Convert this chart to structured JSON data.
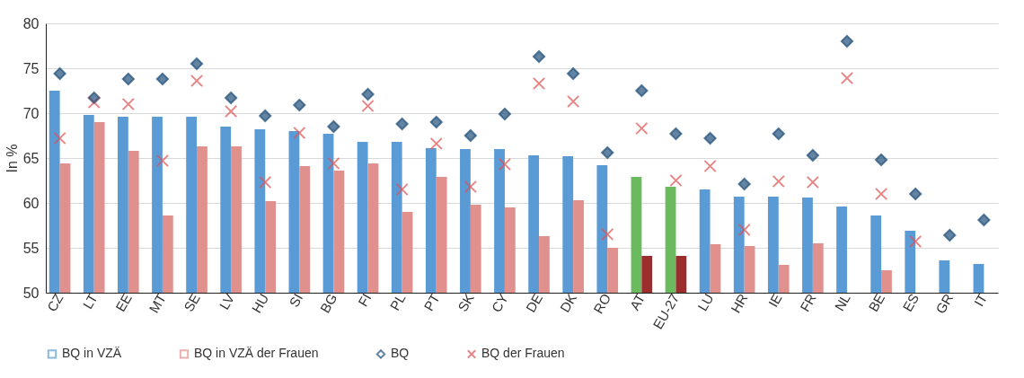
{
  "chart_data": {
    "type": "bar",
    "ylabel": "In %",
    "categories": [
      "CZ",
      "LT",
      "EE",
      "MT",
      "SE",
      "LV",
      "HU",
      "SI",
      "BG",
      "FI",
      "PL",
      "PT",
      "SK",
      "CY",
      "DE",
      "DK",
      "RO",
      "AT",
      "EU-27",
      "LU",
      "HR",
      "IE",
      "FR",
      "NL",
      "BE",
      "ES",
      "GR",
      "IT"
    ],
    "series": [
      {
        "name": "BQ in VZÄ",
        "color": "#5b9bd5",
        "colors": [
          "#5b9bd5",
          "#5b9bd5",
          "#5b9bd5",
          "#5b9bd5",
          "#5b9bd5",
          "#5b9bd5",
          "#5b9bd5",
          "#5b9bd5",
          "#5b9bd5",
          "#5b9bd5",
          "#5b9bd5",
          "#5b9bd5",
          "#5b9bd5",
          "#5b9bd5",
          "#5b9bd5",
          "#5b9bd5",
          "#5b9bd5",
          "#6aba5e",
          "#6aba5e",
          "#5b9bd5",
          "#5b9bd5",
          "#5b9bd5",
          "#5b9bd5",
          "#5b9bd5",
          "#5b9bd5",
          "#5b9bd5",
          "#5b9bd5",
          "#5b9bd5"
        ],
        "values": [
          72.5,
          69.8,
          69.6,
          69.6,
          69.6,
          68.5,
          68.2,
          68.0,
          67.7,
          66.8,
          66.8,
          66.1,
          66.0,
          66.0,
          65.3,
          65.2,
          64.2,
          62.9,
          61.8,
          61.5,
          60.7,
          60.7,
          60.6,
          59.6,
          58.6,
          56.9,
          53.6,
          53.2
        ]
      },
      {
        "name": "BQ in VZÄ der Frauen",
        "color": "#e0918d",
        "colors": [
          "#e0918d",
          "#e0918d",
          "#e0918d",
          "#e0918d",
          "#e0918d",
          "#e0918d",
          "#e0918d",
          "#e0918d",
          "#e0918d",
          "#e0918d",
          "#e0918d",
          "#e0918d",
          "#e0918d",
          "#e0918d",
          "#e0918d",
          "#e0918d",
          "#e0918d",
          "#9b2d2d",
          "#9b2d2d",
          "#e0918d",
          "#e0918d",
          "#e0918d",
          "#e0918d",
          "#e0918d",
          "#e0918d",
          "#e0918d",
          "#e0918d",
          "#e0918d"
        ],
        "values": [
          64.4,
          69.0,
          65.8,
          58.6,
          66.3,
          66.3,
          60.2,
          64.1,
          63.6,
          64.4,
          59.0,
          62.9,
          59.8,
          59.5,
          56.3,
          60.3,
          55.0,
          54.1,
          54.1,
          55.4,
          55.2,
          53.1,
          55.5,
          null,
          52.5,
          null,
          null,
          null
        ]
      },
      {
        "name": "BQ",
        "type": "scatter",
        "marker": "diamond",
        "color": "#1f4e79",
        "values": [
          74.4,
          71.7,
          73.8,
          73.8,
          75.5,
          71.7,
          69.7,
          70.9,
          68.5,
          72.1,
          68.8,
          69.0,
          67.5,
          69.9,
          76.3,
          74.4,
          65.6,
          72.5,
          67.7,
          67.2,
          62.1,
          67.7,
          65.3,
          78.0,
          64.8,
          61.0,
          56.4,
          58.1
        ]
      },
      {
        "name": "BQ der Frauen",
        "type": "scatter",
        "marker": "cross",
        "color": "#e05050",
        "values": [
          67.2,
          71.2,
          71.0,
          64.7,
          73.6,
          70.2,
          62.3,
          67.8,
          64.4,
          70.8,
          61.5,
          66.6,
          61.8,
          64.3,
          73.3,
          71.3,
          56.5,
          68.3,
          62.5,
          64.1,
          57.0,
          62.4,
          62.3,
          73.9,
          61.0,
          55.7,
          null,
          null
        ]
      }
    ],
    "ylim": [
      50,
      80
    ],
    "yticks": [
      50,
      55,
      60,
      65,
      70,
      75,
      80
    ],
    "grid": "y",
    "legend": "bottom"
  }
}
